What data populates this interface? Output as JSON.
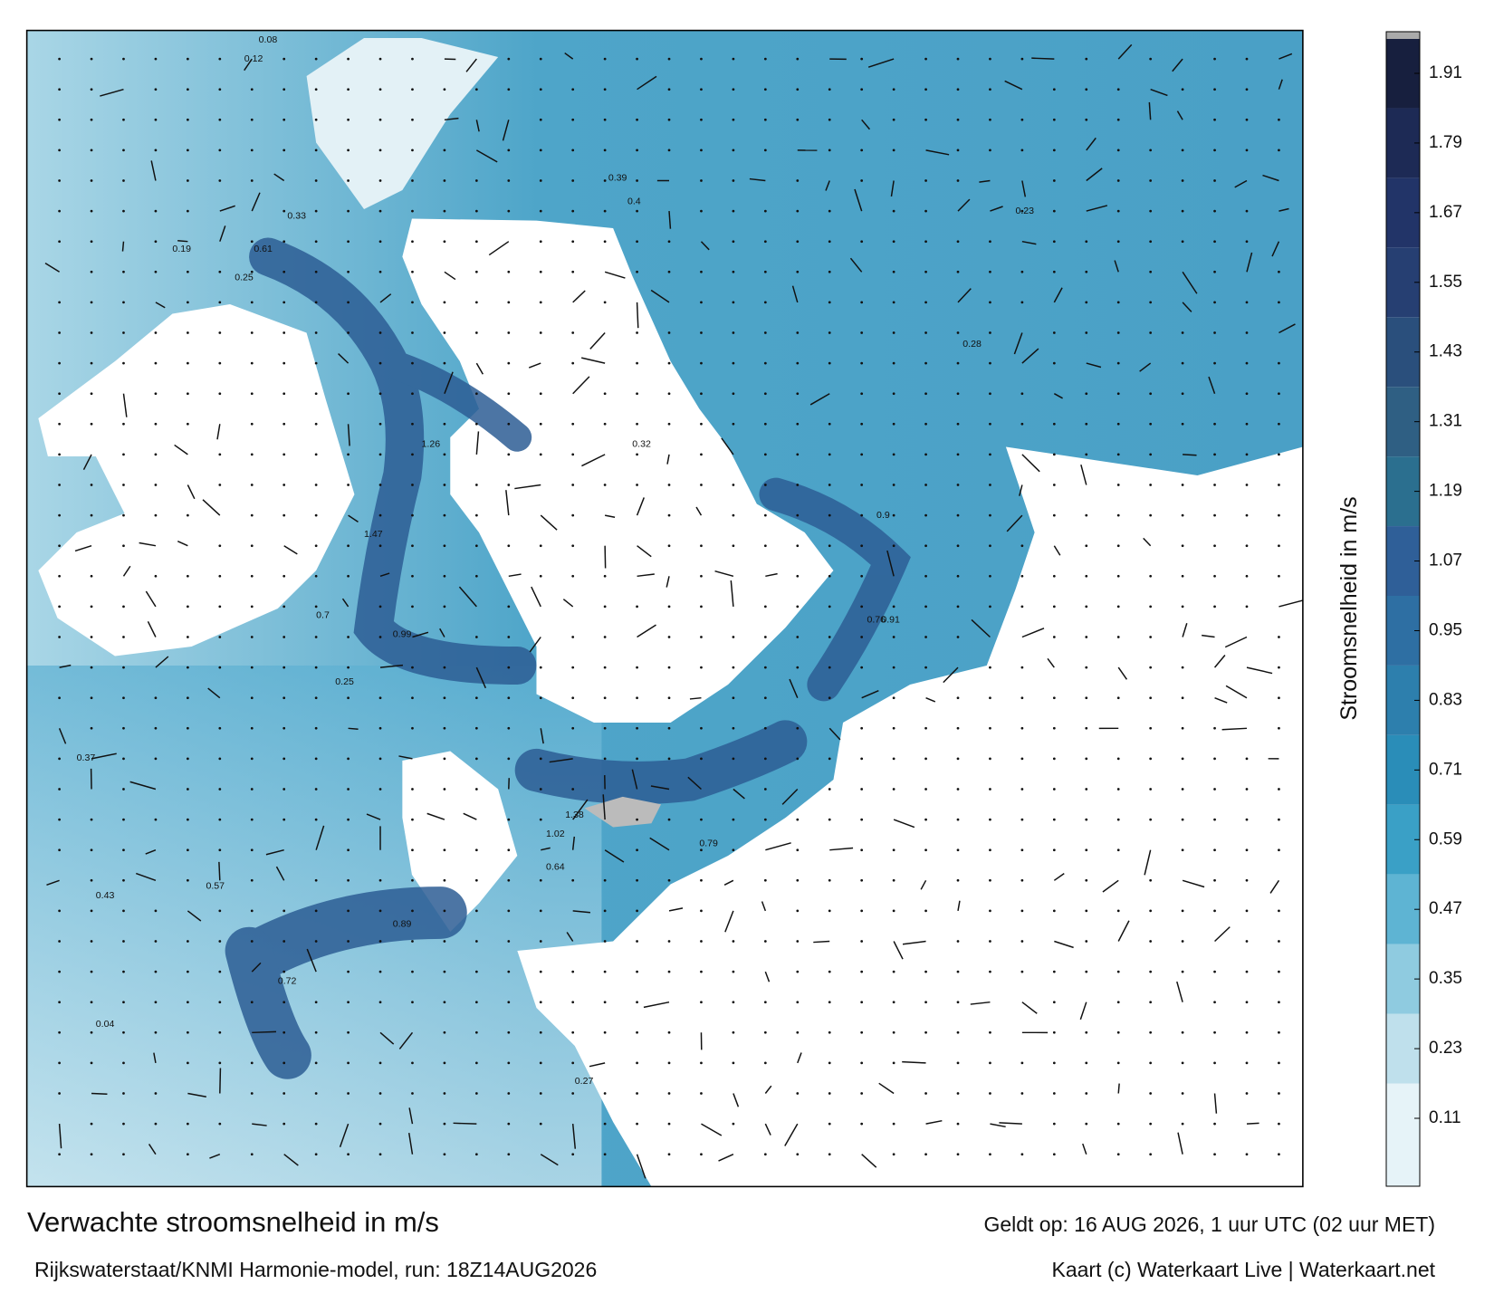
{
  "header": {
    "title": "Verwachte stroomsnelheid in m/s",
    "subtitle": "Rijkswaterstaat/KNMI Harmonie-model, run: 18Z14AUG2026",
    "valid": "Geldt op: 16 AUG 2026, 1 uur UTC (02 uur MET)",
    "credit": "Kaart (c) Waterkaart Live | Waterkaart.net"
  },
  "colorbar": {
    "label": "Stroomsnelheid in m/s",
    "ticks": [
      0.11,
      0.23,
      0.35,
      0.47,
      0.59,
      0.71,
      0.83,
      0.95,
      1.07,
      1.19,
      1.31,
      1.43,
      1.55,
      1.67,
      1.79,
      1.91
    ],
    "colors": [
      "#e6f3f8",
      "#bfe0ec",
      "#8fcbe0",
      "#5eb4d3",
      "#3aa0c6",
      "#2a8db8",
      "#2d7fad",
      "#2e6fa3",
      "#2f5f98",
      "#2b6f8f",
      "#2f5f83",
      "#2a4f7c",
      "#263f72",
      "#223468",
      "#1d2a55",
      "#171f3e"
    ]
  },
  "map_labels": [
    "0.08",
    "0.12",
    "0.19",
    "0.25",
    "0.33",
    "0.61",
    "1.26",
    "0.99",
    "1.47",
    "0.7",
    "0.25",
    "0.37",
    "0.57",
    "0.89",
    "0.72",
    "1.38",
    "1.02",
    "0.79",
    "0.39",
    "0.4",
    "0.23",
    "0.32",
    "0.9",
    "0.76",
    "0.91",
    "0.64",
    "0.43",
    "0.28",
    "0.04",
    "0.27"
  ]
}
